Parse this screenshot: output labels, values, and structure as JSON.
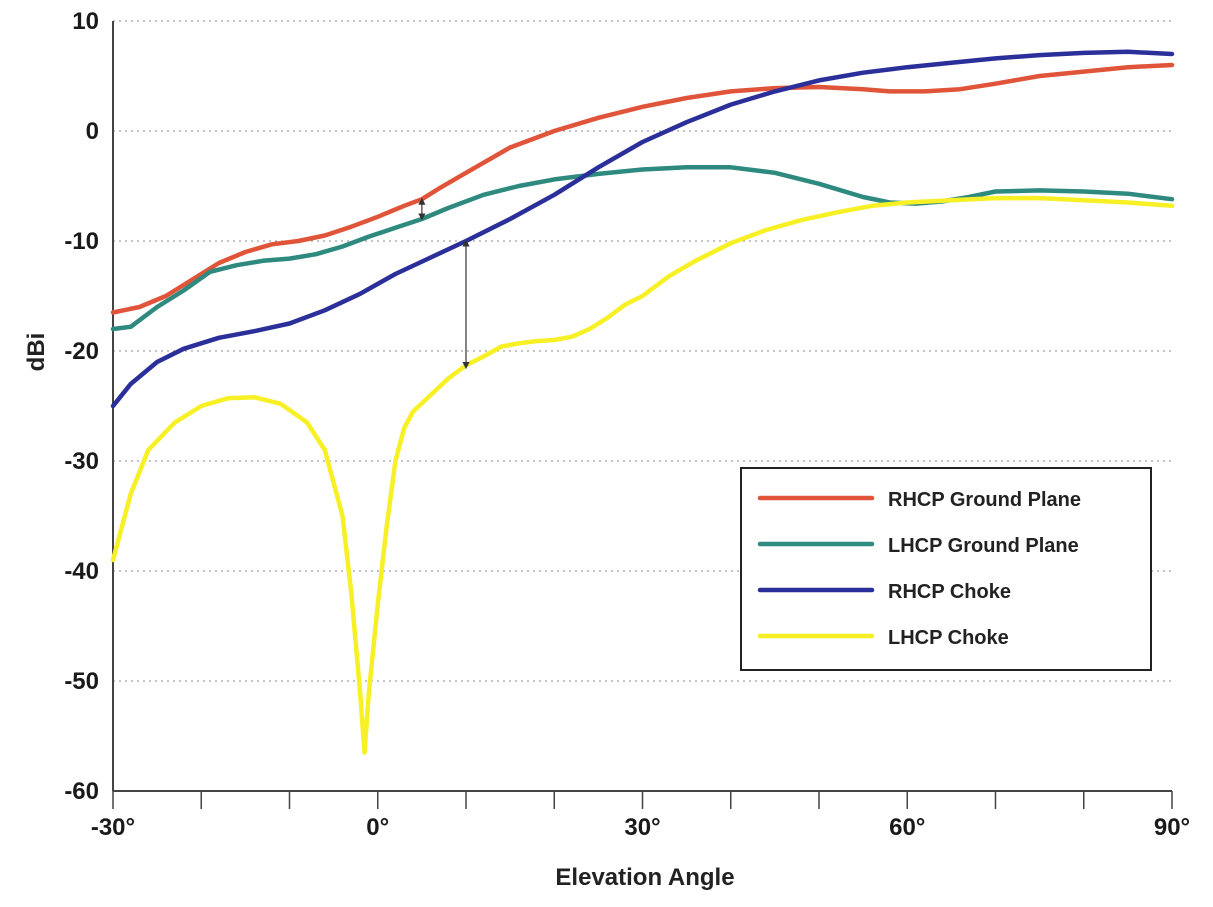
{
  "chart_data": {
    "type": "line",
    "title": "",
    "xlabel": "Elevation Angle",
    "ylabel": "dBi",
    "xlim": [
      -30,
      90
    ],
    "ylim": [
      -60,
      10
    ],
    "x_ticks": [
      -30,
      -20,
      -10,
      0,
      10,
      20,
      30,
      40,
      50,
      60,
      70,
      80,
      90
    ],
    "x_tick_labels": [
      {
        "value": -30,
        "label": "-30°"
      },
      {
        "value": 0,
        "label": "0°"
      },
      {
        "value": 30,
        "label": "30°"
      },
      {
        "value": 60,
        "label": "60°"
      },
      {
        "value": 90,
        "label": "90°"
      }
    ],
    "y_tick_labels": [
      {
        "value": 10,
        "label": "10"
      },
      {
        "value": 0,
        "label": "0"
      },
      {
        "value": -10,
        "label": "-10"
      },
      {
        "value": -20,
        "label": "-20"
      },
      {
        "value": -30,
        "label": "-30"
      },
      {
        "value": -40,
        "label": "-40"
      },
      {
        "value": -50,
        "label": "-50"
      },
      {
        "value": -60,
        "label": "-60"
      }
    ],
    "grid": "horizontal dotted",
    "legend_position": "right",
    "series": [
      {
        "name": "RHCP Ground Plane",
        "color": "#e0553a",
        "points": [
          [
            -30,
            -16.5
          ],
          [
            -27,
            -16
          ],
          [
            -24,
            -15
          ],
          [
            -21,
            -13.5
          ],
          [
            -18,
            -12
          ],
          [
            -15,
            -11
          ],
          [
            -12,
            -10.3
          ],
          [
            -9,
            -10
          ],
          [
            -6,
            -9.5
          ],
          [
            -3,
            -8.7
          ],
          [
            0,
            -7.8
          ],
          [
            3,
            -6.8
          ],
          [
            5,
            -6.2
          ],
          [
            7,
            -5.2
          ],
          [
            10,
            -3.8
          ],
          [
            15,
            -1.5
          ],
          [
            20,
            0
          ],
          [
            25,
            1.2
          ],
          [
            30,
            2.2
          ],
          [
            35,
            3
          ],
          [
            40,
            3.6
          ],
          [
            45,
            3.9
          ],
          [
            50,
            4
          ],
          [
            55,
            3.8
          ],
          [
            58,
            3.6
          ],
          [
            62,
            3.6
          ],
          [
            66,
            3.8
          ],
          [
            70,
            4.3
          ],
          [
            75,
            5
          ],
          [
            80,
            5.4
          ],
          [
            85,
            5.8
          ],
          [
            90,
            6
          ]
        ]
      },
      {
        "name": "LHCP Ground Plane",
        "color": "#2e8a7e",
        "points": [
          [
            -30,
            -18
          ],
          [
            -28,
            -17.8
          ],
          [
            -25,
            -16
          ],
          [
            -22,
            -14.5
          ],
          [
            -19,
            -12.8
          ],
          [
            -16,
            -12.2
          ],
          [
            -13,
            -11.8
          ],
          [
            -10,
            -11.6
          ],
          [
            -7,
            -11.2
          ],
          [
            -4,
            -10.5
          ],
          [
            -1,
            -9.6
          ],
          [
            2,
            -8.8
          ],
          [
            5,
            -8
          ],
          [
            8,
            -7
          ],
          [
            12,
            -5.8
          ],
          [
            16,
            -5
          ],
          [
            20,
            -4.4
          ],
          [
            25,
            -3.9
          ],
          [
            30,
            -3.5
          ],
          [
            35,
            -3.3
          ],
          [
            40,
            -3.3
          ],
          [
            45,
            -3.8
          ],
          [
            50,
            -4.8
          ],
          [
            55,
            -6
          ],
          [
            58,
            -6.5
          ],
          [
            61,
            -6.6
          ],
          [
            64,
            -6.4
          ],
          [
            67,
            -6
          ],
          [
            70,
            -5.5
          ],
          [
            75,
            -5.4
          ],
          [
            80,
            -5.5
          ],
          [
            85,
            -5.7
          ],
          [
            90,
            -6.2
          ]
        ]
      },
      {
        "name": "RHCP Choke",
        "color": "#2b2f9a",
        "points": [
          [
            -30,
            -25
          ],
          [
            -28,
            -23
          ],
          [
            -25,
            -21
          ],
          [
            -22,
            -19.8
          ],
          [
            -18,
            -18.8
          ],
          [
            -14,
            -18.2
          ],
          [
            -10,
            -17.5
          ],
          [
            -6,
            -16.3
          ],
          [
            -2,
            -14.8
          ],
          [
            2,
            -13
          ],
          [
            6,
            -11.5
          ],
          [
            10,
            -10
          ],
          [
            15,
            -8
          ],
          [
            20,
            -5.8
          ],
          [
            25,
            -3.3
          ],
          [
            30,
            -1
          ],
          [
            35,
            0.8
          ],
          [
            40,
            2.4
          ],
          [
            45,
            3.6
          ],
          [
            50,
            4.6
          ],
          [
            55,
            5.3
          ],
          [
            60,
            5.8
          ],
          [
            65,
            6.2
          ],
          [
            70,
            6.6
          ],
          [
            75,
            6.9
          ],
          [
            80,
            7.1
          ],
          [
            85,
            7.2
          ],
          [
            90,
            7
          ]
        ]
      },
      {
        "name": "LHCP Choke",
        "color": "#f6f024",
        "points": [
          [
            -30,
            -39
          ],
          [
            -28,
            -33
          ],
          [
            -26,
            -29
          ],
          [
            -23,
            -26.5
          ],
          [
            -20,
            -25
          ],
          [
            -17,
            -24.3
          ],
          [
            -14,
            -24.2
          ],
          [
            -11,
            -24.8
          ],
          [
            -8,
            -26.5
          ],
          [
            -6,
            -29
          ],
          [
            -4,
            -35
          ],
          [
            -3,
            -42
          ],
          [
            -2,
            -51
          ],
          [
            -1.5,
            -56.5
          ],
          [
            -1,
            -51
          ],
          [
            0,
            -43
          ],
          [
            1,
            -36
          ],
          [
            2,
            -30
          ],
          [
            3,
            -27
          ],
          [
            4,
            -25.5
          ],
          [
            6,
            -24
          ],
          [
            8,
            -22.5
          ],
          [
            10,
            -21.3
          ],
          [
            12,
            -20.5
          ],
          [
            14,
            -19.6
          ],
          [
            16,
            -19.3
          ],
          [
            18,
            -19.1
          ],
          [
            20,
            -19
          ],
          [
            22,
            -18.7
          ],
          [
            24,
            -18
          ],
          [
            26,
            -17
          ],
          [
            28,
            -15.8
          ],
          [
            30,
            -15
          ],
          [
            33,
            -13.2
          ],
          [
            36,
            -11.8
          ],
          [
            40,
            -10.2
          ],
          [
            44,
            -9
          ],
          [
            48,
            -8.1
          ],
          [
            52,
            -7.4
          ],
          [
            56,
            -6.8
          ],
          [
            60,
            -6.5
          ],
          [
            65,
            -6.3
          ],
          [
            70,
            -6.1
          ],
          [
            75,
            -6.1
          ],
          [
            80,
            -6.3
          ],
          [
            85,
            -6.5
          ],
          [
            90,
            -6.8
          ]
        ]
      }
    ],
    "annotations": [
      {
        "type": "double-arrow",
        "x": 5,
        "y_from": -6.2,
        "y_to": -8
      },
      {
        "type": "double-arrow",
        "x": 10,
        "y_from": -10,
        "y_to": -21.5
      }
    ]
  }
}
